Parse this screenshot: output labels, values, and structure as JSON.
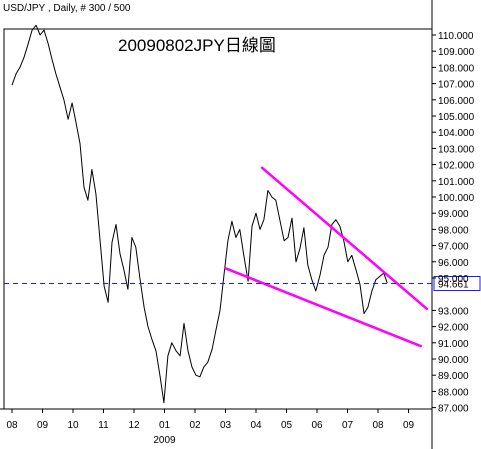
{
  "header": {
    "symbol_info": "USD/JPY , Daily, # 300 / 500"
  },
  "chart_data": {
    "type": "line",
    "title": "20090802JPY日線圖",
    "xlabel": "",
    "ylabel": "",
    "ylim": [
      86.5,
      111.8
    ],
    "grid": false,
    "y_ticks": [
      {
        "v": 110,
        "label": "110.000"
      },
      {
        "v": 109,
        "label": "109.000"
      },
      {
        "v": 108,
        "label": "108.000"
      },
      {
        "v": 107,
        "label": "107.000"
      },
      {
        "v": 106,
        "label": "106.000"
      },
      {
        "v": 105,
        "label": "105.000"
      },
      {
        "v": 104,
        "label": "104.000"
      },
      {
        "v": 103,
        "label": "103.000"
      },
      {
        "v": 102,
        "label": "102.000"
      },
      {
        "v": 101,
        "label": "101.000"
      },
      {
        "v": 100,
        "label": "100.000"
      },
      {
        "v": 99,
        "label": "99.000"
      },
      {
        "v": 98,
        "label": "98.000"
      },
      {
        "v": 97,
        "label": "97.000"
      },
      {
        "v": 96,
        "label": "96.000"
      },
      {
        "v": 95,
        "label": "95.000"
      },
      {
        "v": 93,
        "label": "93.000"
      },
      {
        "v": 92,
        "label": "92.000"
      },
      {
        "v": 91,
        "label": "91.000"
      },
      {
        "v": 90,
        "label": "90.000"
      },
      {
        "v": 89,
        "label": "89.000"
      },
      {
        "v": 88,
        "label": "88.000"
      },
      {
        "v": 87,
        "label": "87.000"
      }
    ],
    "x_ticks": [
      "08",
      "09",
      "10",
      "11",
      "12",
      "01",
      "02",
      "03",
      "04",
      "05",
      "06",
      "07",
      "08",
      "09"
    ],
    "x_sublabel": {
      "text": "2009",
      "under_tick": "01"
    },
    "current_price": {
      "value": 94.661,
      "label": "94.661",
      "color": "#1a1aff"
    },
    "trendlines": [
      {
        "name": "upper-resistance",
        "color": "#ff00ff",
        "from": {
          "x": 8.2,
          "y": 101.8
        },
        "to": {
          "x": 13.6,
          "y": 93.1
        }
      },
      {
        "name": "lower-support",
        "color": "#ff00ff",
        "from": {
          "x": 7.0,
          "y": 95.6
        },
        "to": {
          "x": 13.4,
          "y": 90.8
        }
      }
    ],
    "series": [
      {
        "color": "#000000",
        "points": [
          [
            0.0,
            106.9
          ],
          [
            0.13,
            107.6
          ],
          [
            0.26,
            108.0
          ],
          [
            0.39,
            108.6
          ],
          [
            0.52,
            109.4
          ],
          [
            0.66,
            110.3
          ],
          [
            0.79,
            110.6
          ],
          [
            0.92,
            110.0
          ],
          [
            1.05,
            110.3
          ],
          [
            1.18,
            109.5
          ],
          [
            1.31,
            108.5
          ],
          [
            1.44,
            107.6
          ],
          [
            1.57,
            106.8
          ],
          [
            1.7,
            106.0
          ],
          [
            1.84,
            104.8
          ],
          [
            1.97,
            105.8
          ],
          [
            2.1,
            104.6
          ],
          [
            2.23,
            103.3
          ],
          [
            2.36,
            100.6
          ],
          [
            2.49,
            99.8
          ],
          [
            2.62,
            101.7
          ],
          [
            2.75,
            100.2
          ],
          [
            2.88,
            97.5
          ],
          [
            3.02,
            94.5
          ],
          [
            3.15,
            93.5
          ],
          [
            3.28,
            97.2
          ],
          [
            3.41,
            98.3
          ],
          [
            3.54,
            96.5
          ],
          [
            3.67,
            95.5
          ],
          [
            3.8,
            94.3
          ],
          [
            3.93,
            97.5
          ],
          [
            4.06,
            96.9
          ],
          [
            4.2,
            94.9
          ],
          [
            4.33,
            93.2
          ],
          [
            4.46,
            92.0
          ],
          [
            4.59,
            91.2
          ],
          [
            4.72,
            90.5
          ],
          [
            4.85,
            89.0
          ],
          [
            4.98,
            87.3
          ],
          [
            5.11,
            90.2
          ],
          [
            5.24,
            91.0
          ],
          [
            5.38,
            90.5
          ],
          [
            5.51,
            90.2
          ],
          [
            5.64,
            92.2
          ],
          [
            5.77,
            90.5
          ],
          [
            5.9,
            89.5
          ],
          [
            6.03,
            89.0
          ],
          [
            6.16,
            88.9
          ],
          [
            6.29,
            89.5
          ],
          [
            6.42,
            89.8
          ],
          [
            6.56,
            90.6
          ],
          [
            6.69,
            91.8
          ],
          [
            6.82,
            93.0
          ],
          [
            6.95,
            95.2
          ],
          [
            7.08,
            97.3
          ],
          [
            7.21,
            98.5
          ],
          [
            7.34,
            97.5
          ],
          [
            7.47,
            98.0
          ],
          [
            7.6,
            96.4
          ],
          [
            7.74,
            94.8
          ],
          [
            7.87,
            98.2
          ],
          [
            8.0,
            99.0
          ],
          [
            8.13,
            98.0
          ],
          [
            8.26,
            98.6
          ],
          [
            8.39,
            100.4
          ],
          [
            8.52,
            100.0
          ],
          [
            8.65,
            99.8
          ],
          [
            8.78,
            98.6
          ],
          [
            8.92,
            97.3
          ],
          [
            9.05,
            97.5
          ],
          [
            9.18,
            98.7
          ],
          [
            9.31,
            96.0
          ],
          [
            9.44,
            96.8
          ],
          [
            9.57,
            98.1
          ],
          [
            9.7,
            95.8
          ],
          [
            9.83,
            94.9
          ],
          [
            9.96,
            94.2
          ],
          [
            10.1,
            95.2
          ],
          [
            10.23,
            96.4
          ],
          [
            10.36,
            96.9
          ],
          [
            10.49,
            98.3
          ],
          [
            10.62,
            98.6
          ],
          [
            10.75,
            98.2
          ],
          [
            10.88,
            97.3
          ],
          [
            11.01,
            96.0
          ],
          [
            11.14,
            96.4
          ],
          [
            11.28,
            95.5
          ],
          [
            11.41,
            94.6
          ],
          [
            11.54,
            92.8
          ],
          [
            11.67,
            93.2
          ],
          [
            11.8,
            94.2
          ],
          [
            11.93,
            94.9
          ],
          [
            12.06,
            95.1
          ],
          [
            12.19,
            95.3
          ],
          [
            12.3,
            94.7
          ]
        ]
      }
    ]
  }
}
